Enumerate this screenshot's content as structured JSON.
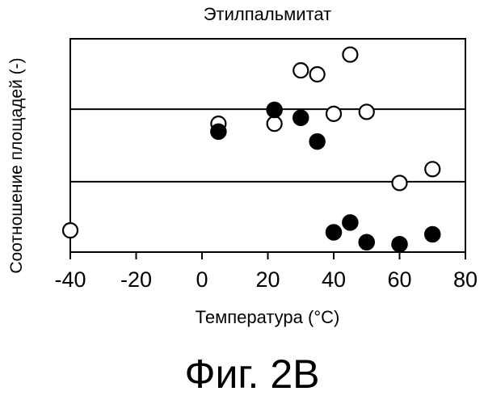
{
  "chart_data": {
    "type": "scatter",
    "title": "Этилпальмитат",
    "xlabel": "Температура (°C)",
    "ylabel": "Соотношение площадей (-)",
    "xlim": [
      -40,
      80
    ],
    "xticks": [
      "-40",
      "-20",
      "0",
      "20",
      "40",
      "60",
      "80"
    ],
    "grid": false,
    "reference_lines_y_fraction": [
      0.33,
      0.67
    ],
    "series": [
      {
        "marker": "open-circle",
        "color": "#000000",
        "x": [
          -40,
          5,
          22,
          30,
          35,
          40,
          45,
          50,
          60,
          70
        ],
        "y": [
          0.03,
          0.57,
          0.57,
          0.84,
          0.82,
          0.62,
          0.92,
          0.63,
          0.27,
          0.34
        ]
      },
      {
        "marker": "filled-circle",
        "color": "#000000",
        "x": [
          5,
          22,
          30,
          35,
          40,
          45,
          50,
          60,
          70
        ],
        "y": [
          0.53,
          0.64,
          0.6,
          0.48,
          0.02,
          0.07,
          -0.03,
          -0.04,
          0.01
        ]
      }
    ]
  },
  "caption": "Фиг. 2B"
}
